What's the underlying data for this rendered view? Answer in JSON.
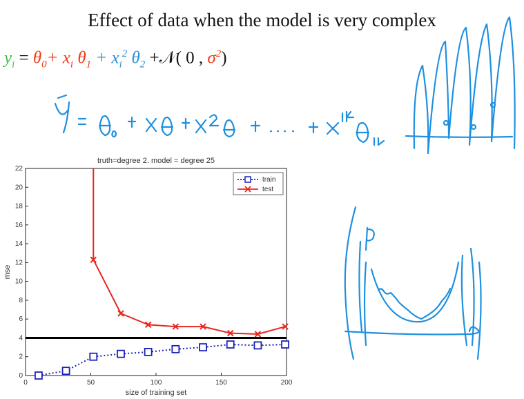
{
  "slide": {
    "title": "Effect of data when the model is very complex"
  },
  "equation": {
    "y": "y",
    "y_sub": "i",
    "eq": " = ",
    "t0": "θ",
    "t0_sub": "0",
    "plus1": "+ ",
    "x1": "x",
    "x1_sub": "i",
    "t1": " θ",
    "t1_sub": "1",
    "plus2": " + ",
    "x2": "x",
    "x2_sub": "i",
    "x2_sup": "2",
    "t2": " θ",
    "t2_sub": "2",
    "noise_open": " +𝒩( 0 , ",
    "sigma": "σ",
    "sigma_sup": "2",
    "noise_close": ")"
  },
  "colors": {
    "train": "#1a22b8",
    "test": "#e8261e",
    "reference_line": "#000000",
    "ink": "#1e90e0"
  },
  "chart_data": {
    "type": "line",
    "title": "truth=degree 2. model = degree 25",
    "xlabel": "size of training set",
    "ylabel": "mse",
    "xlim": [
      0,
      200
    ],
    "ylim": [
      0,
      22
    ],
    "xticks": [
      0,
      50,
      100,
      150,
      200
    ],
    "yticks": [
      0,
      2,
      4,
      6,
      8,
      10,
      12,
      14,
      16,
      18,
      20,
      22
    ],
    "grid": false,
    "legend": "top-right",
    "reference_line_y": 4,
    "series": [
      {
        "name": "train",
        "style": "dotted-square",
        "x": [
          10,
          31,
          52,
          73,
          94,
          115,
          136,
          157,
          178,
          199
        ],
        "y": [
          0.0,
          0.5,
          2.0,
          2.3,
          2.5,
          2.8,
          3.0,
          3.3,
          3.2,
          3.3
        ]
      },
      {
        "name": "test",
        "style": "solid-x",
        "x": [
          52,
          73,
          94,
          115,
          136,
          157,
          178,
          199
        ],
        "y": [
          12.3,
          6.6,
          5.4,
          5.2,
          5.2,
          4.5,
          4.4,
          5.2
        ],
        "off_scale_start_x": 52
      }
    ]
  }
}
